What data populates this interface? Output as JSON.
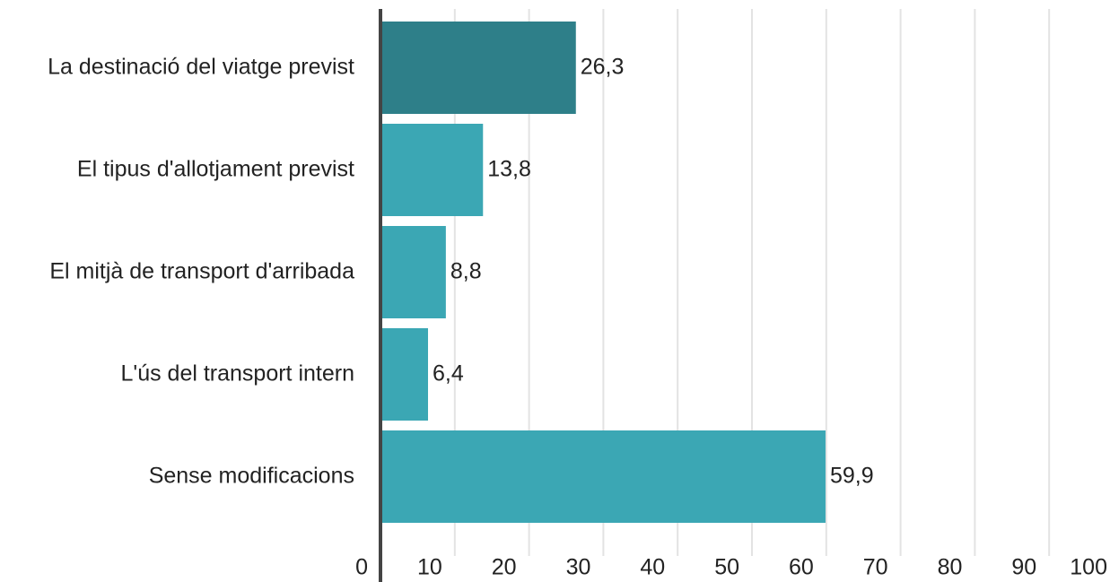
{
  "chart_data": {
    "type": "hbar",
    "categories": [
      "La destinació del viatge previst",
      "El tipus d'allotjament previst",
      "El mitjà de transport d'arribada",
      "L'ús del transport intern",
      "Sense modificacions"
    ],
    "values": [
      26.3,
      13.8,
      8.8,
      6.4,
      59.9
    ],
    "value_labels": [
      "26,3",
      "13,8",
      "8,8",
      "6,4",
      "59,9"
    ],
    "colors": [
      "#2e7f89",
      "#3ba7b4",
      "#3ba7b4",
      "#3ba7b4",
      "#3ba7b4"
    ],
    "xlim": [
      0,
      100
    ],
    "xticks": [
      0,
      10,
      20,
      30,
      40,
      50,
      60,
      70,
      80,
      90,
      100
    ],
    "grid": true
  }
}
